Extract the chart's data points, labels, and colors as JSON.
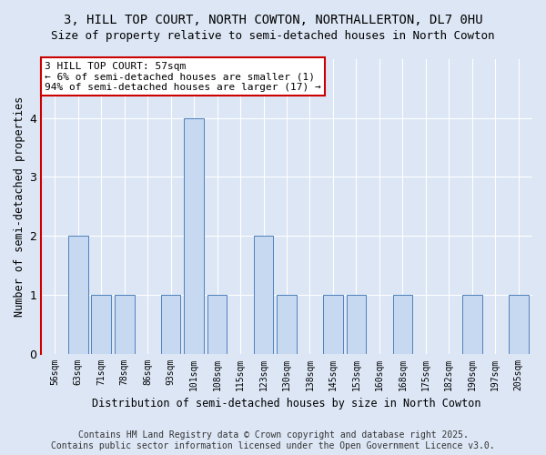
{
  "title_line1": "3, HILL TOP COURT, NORTH COWTON, NORTHALLERTON, DL7 0HU",
  "title_line2": "Size of property relative to semi-detached houses in North Cowton",
  "xlabel": "Distribution of semi-detached houses by size in North Cowton",
  "ylabel": "Number of semi-detached properties",
  "footer_line1": "Contains HM Land Registry data © Crown copyright and database right 2025.",
  "footer_line2": "Contains public sector information licensed under the Open Government Licence v3.0.",
  "categories": [
    "56sqm",
    "63sqm",
    "71sqm",
    "78sqm",
    "86sqm",
    "93sqm",
    "101sqm",
    "108sqm",
    "115sqm",
    "123sqm",
    "130sqm",
    "138sqm",
    "145sqm",
    "153sqm",
    "160sqm",
    "168sqm",
    "175sqm",
    "182sqm",
    "190sqm",
    "197sqm",
    "205sqm"
  ],
  "values": [
    0,
    2,
    1,
    1,
    0,
    1,
    4,
    1,
    0,
    2,
    1,
    0,
    1,
    1,
    0,
    1,
    0,
    0,
    1,
    0,
    1
  ],
  "bar_color": "#c6d9f0",
  "bar_edge_color": "#4f81bd",
  "highlight_color": "#cc0000",
  "annotation_text": "3 HILL TOP COURT: 57sqm\n← 6% of semi-detached houses are smaller (1)\n94% of semi-detached houses are larger (17) →",
  "annotation_box_color": "#ffffff",
  "annotation_box_edge_color": "#cc0000",
  "ylim": [
    0,
    5
  ],
  "yticks": [
    0,
    1,
    2,
    3,
    4,
    5
  ],
  "background_color": "#dce6f5",
  "plot_bg_color": "#dce6f5",
  "grid_color": "#ffffff",
  "title_fontsize": 10,
  "subtitle_fontsize": 9,
  "axis_label_fontsize": 8.5,
  "tick_fontsize": 7,
  "annotation_fontsize": 8,
  "footer_fontsize": 7
}
